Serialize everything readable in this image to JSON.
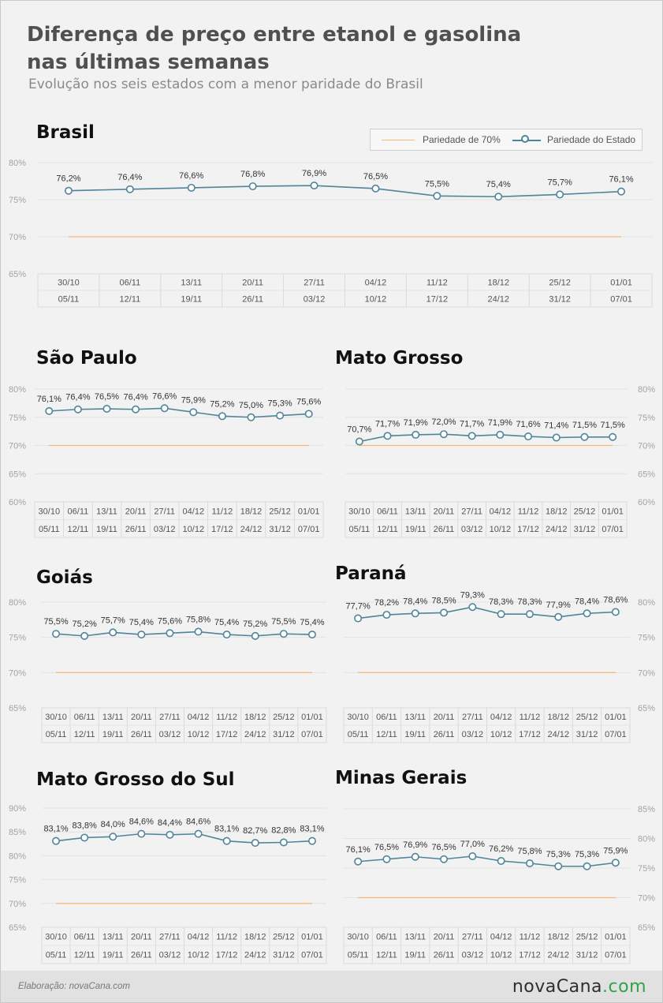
{
  "title_line1": "Diferença de preço entre etanol e gasolina",
  "title_line2": "nas últimas semanas",
  "subtitle": "Evolução nos seis estados com a menor paridade do Brasil",
  "legend": {
    "ref_label": "Pariedade de 70%",
    "state_label": "Pariedade do Estado"
  },
  "colors": {
    "reference_line": "#f5b87a",
    "state_line": "#4f8598",
    "marker_fill": "#ffffff"
  },
  "icons": [
    "legend-line-icon",
    "legend-marker-icon"
  ],
  "footer": {
    "credit": "Elaboração: novaCana.com",
    "logo_main": "novaCana",
    "logo_suffix": ".com"
  },
  "chart_data": [
    {
      "type": "line",
      "title": "Brasil",
      "x_top": [
        "30/10",
        "06/11",
        "13/11",
        "20/11",
        "27/11",
        "04/12",
        "11/12",
        "18/12",
        "25/12",
        "01/01"
      ],
      "x_bottom": [
        "05/11",
        "12/11",
        "19/11",
        "26/11",
        "03/12",
        "10/12",
        "17/12",
        "24/12",
        "31/12",
        "07/01"
      ],
      "values": [
        76.2,
        76.4,
        76.6,
        76.8,
        76.9,
        76.5,
        75.5,
        75.4,
        75.7,
        76.1
      ],
      "labels": [
        "76,2%",
        "76,4%",
        "76,6%",
        "76,8%",
        "76,9%",
        "76,5%",
        "75,5%",
        "75,4%",
        "75,7%",
        "76,1%"
      ],
      "reference": 70,
      "ylim": [
        65,
        80
      ],
      "yticks": [
        "80%",
        "75%",
        "70%",
        "65%"
      ],
      "yaxis_side": "left",
      "legend": "top-right",
      "grid": true
    },
    {
      "type": "line",
      "title": "São Paulo",
      "x_top": [
        "30/10",
        "06/11",
        "13/11",
        "20/11",
        "27/11",
        "04/12",
        "11/12",
        "18/12",
        "25/12",
        "01/01"
      ],
      "x_bottom": [
        "05/11",
        "12/11",
        "19/11",
        "26/11",
        "03/12",
        "10/12",
        "17/12",
        "24/12",
        "31/12",
        "07/01"
      ],
      "values": [
        76.1,
        76.4,
        76.5,
        76.4,
        76.6,
        75.9,
        75.2,
        75.0,
        75.3,
        75.6
      ],
      "labels": [
        "76,1%",
        "76,4%",
        "76,5%",
        "76,4%",
        "76,6%",
        "75,9%",
        "75,2%",
        "75,0%",
        "75,3%",
        "75,6%"
      ],
      "reference": 70,
      "ylim": [
        60,
        80
      ],
      "yticks": [
        "80%",
        "75%",
        "70%",
        "65%",
        "60%"
      ],
      "yaxis_side": "left",
      "grid": true
    },
    {
      "type": "line",
      "title": "Mato Grosso",
      "x_top": [
        "30/10",
        "06/11",
        "13/11",
        "20/11",
        "27/11",
        "04/12",
        "11/12",
        "18/12",
        "25/12",
        "01/01"
      ],
      "x_bottom": [
        "05/11",
        "12/11",
        "19/11",
        "26/11",
        "03/12",
        "10/12",
        "17/12",
        "24/12",
        "31/12",
        "07/01"
      ],
      "values": [
        70.7,
        71.7,
        71.9,
        72.0,
        71.7,
        71.9,
        71.6,
        71.4,
        71.5,
        71.5
      ],
      "labels": [
        "70,7%",
        "71,7%",
        "71,9%",
        "72,0%",
        "71,7%",
        "71,9%",
        "71,6%",
        "71,4%",
        "71,5%",
        "71,5%"
      ],
      "reference": 70,
      "ylim": [
        60,
        80
      ],
      "yticks": [
        "80%",
        "75%",
        "70%",
        "65%",
        "60%"
      ],
      "yaxis_side": "right",
      "grid": true
    },
    {
      "type": "line",
      "title": "Goiás",
      "x_top": [
        "30/10",
        "06/11",
        "13/11",
        "20/11",
        "27/11",
        "04/12",
        "11/12",
        "18/12",
        "25/12",
        "01/01"
      ],
      "x_bottom": [
        "05/11",
        "12/11",
        "19/11",
        "26/11",
        "03/12",
        "10/12",
        "17/12",
        "24/12",
        "31/12",
        "07/01"
      ],
      "values": [
        75.5,
        75.2,
        75.7,
        75.4,
        75.6,
        75.8,
        75.4,
        75.2,
        75.5,
        75.4
      ],
      "labels": [
        "75,5%",
        "75,2%",
        "75,7%",
        "75,4%",
        "75,6%",
        "75,8%",
        "75,4%",
        "75,2%",
        "75,5%",
        "75,4%"
      ],
      "reference": 70,
      "ylim": [
        65,
        80
      ],
      "yticks": [
        "80%",
        "75%",
        "70%",
        "65%"
      ],
      "yaxis_side": "left",
      "grid": true
    },
    {
      "type": "line",
      "title": "Paraná",
      "x_top": [
        "30/10",
        "06/11",
        "13/11",
        "20/11",
        "27/11",
        "04/12",
        "11/12",
        "18/12",
        "25/12",
        "01/01"
      ],
      "x_bottom": [
        "05/11",
        "12/11",
        "19/11",
        "26/11",
        "03/12",
        "10/12",
        "17/12",
        "24/12",
        "31/12",
        "07/01"
      ],
      "values": [
        77.7,
        78.2,
        78.4,
        78.5,
        79.3,
        78.3,
        78.3,
        77.9,
        78.4,
        78.6
      ],
      "labels": [
        "77,7%",
        "78,2%",
        "78,4%",
        "78,5%",
        "79,3%",
        "78,3%",
        "78,3%",
        "77,9%",
        "78,4%",
        "78,6%"
      ],
      "reference": 70,
      "ylim": [
        65,
        80
      ],
      "yticks": [
        "80%",
        "75%",
        "70%",
        "65%"
      ],
      "yaxis_side": "right",
      "grid": true
    },
    {
      "type": "line",
      "title": "Mato Grosso do Sul",
      "x_top": [
        "30/10",
        "06/11",
        "13/11",
        "20/11",
        "27/11",
        "04/12",
        "11/12",
        "18/12",
        "25/12",
        "01/01"
      ],
      "x_bottom": [
        "05/11",
        "12/11",
        "19/11",
        "26/11",
        "03/12",
        "10/12",
        "17/12",
        "24/12",
        "31/12",
        "07/01"
      ],
      "values": [
        83.1,
        83.8,
        84.0,
        84.6,
        84.4,
        84.6,
        83.1,
        82.7,
        82.8,
        83.1
      ],
      "labels": [
        "83,1%",
        "83,8%",
        "84,0%",
        "84,6%",
        "84,4%",
        "84,6%",
        "83,1%",
        "82,7%",
        "82,8%",
        "83,1%"
      ],
      "reference": 70,
      "ylim": [
        65,
        90
      ],
      "yticks": [
        "90%",
        "85%",
        "80%",
        "75%",
        "70%",
        "65%"
      ],
      "yaxis_side": "left",
      "grid": true
    },
    {
      "type": "line",
      "title": "Minas Gerais",
      "x_top": [
        "30/10",
        "06/11",
        "13/11",
        "20/11",
        "27/11",
        "04/12",
        "11/12",
        "18/12",
        "25/12",
        "01/01"
      ],
      "x_bottom": [
        "05/11",
        "12/11",
        "19/11",
        "26/11",
        "03/12",
        "10/12",
        "17/12",
        "24/12",
        "31/12",
        "07/01"
      ],
      "values": [
        76.1,
        76.5,
        76.9,
        76.5,
        77.0,
        76.2,
        75.8,
        75.3,
        75.3,
        75.9
      ],
      "labels": [
        "76,1%",
        "76,5%",
        "76,9%",
        "76,5%",
        "77,0%",
        "76,2%",
        "75,8%",
        "75,3%",
        "75,3%",
        "75,9%"
      ],
      "reference": 70,
      "ylim": [
        65,
        85
      ],
      "yticks": [
        "85%",
        "80%",
        "75%",
        "70%",
        "65%"
      ],
      "yaxis_side": "right",
      "grid": true
    }
  ]
}
